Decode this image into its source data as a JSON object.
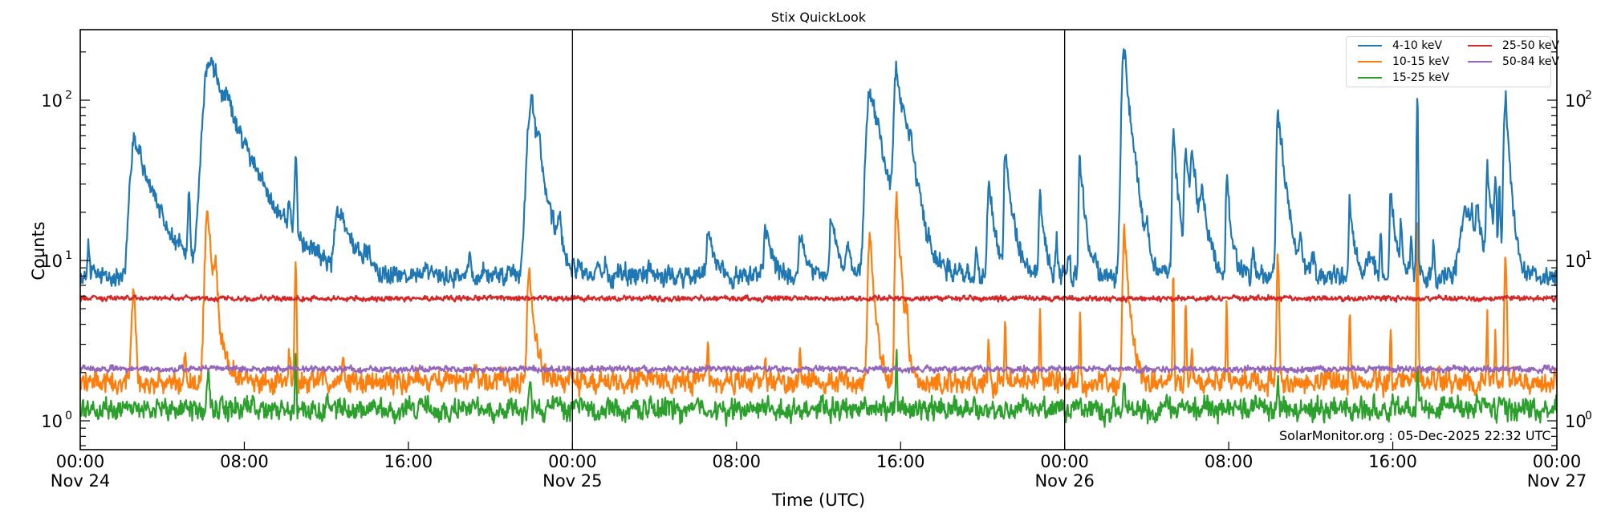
{
  "figure": {
    "title": "Stix QuickLook",
    "ylabel": "Counts",
    "xlabel": "Time (UTC)",
    "credit": "SolarMonitor.org : 05-Dec-2025 22:32 UTC"
  },
  "legend": {
    "items": [
      {
        "label": "4-10 keV",
        "color": "#1f77b4"
      },
      {
        "label": "10-15 keV",
        "color": "#ff7f0e"
      },
      {
        "label": "15-25 keV",
        "color": "#2ca02c"
      },
      {
        "label": "25-50 keV",
        "color": "#d62728"
      },
      {
        "label": "50-84 keV",
        "color": "#9467bd"
      }
    ]
  },
  "x_ticks": [
    {
      "hour": 0,
      "time": "00:00",
      "date": "Nov 24"
    },
    {
      "hour": 8,
      "time": "08:00",
      "date": ""
    },
    {
      "hour": 16,
      "time": "16:00",
      "date": ""
    },
    {
      "hour": 24,
      "time": "00:00",
      "date": "Nov 25"
    },
    {
      "hour": 32,
      "time": "08:00",
      "date": ""
    },
    {
      "hour": 40,
      "time": "16:00",
      "date": ""
    },
    {
      "hour": 48,
      "time": "00:00",
      "date": "Nov 26"
    },
    {
      "hour": 56,
      "time": "08:00",
      "date": ""
    },
    {
      "hour": 64,
      "time": "16:00",
      "date": ""
    },
    {
      "hour": 72,
      "time": "00:00",
      "date": "Nov 27"
    }
  ],
  "y_ticks": [
    {
      "value": 1,
      "label_base": "10",
      "label_exp": "0"
    },
    {
      "value": 10,
      "label_base": "10",
      "label_exp": "1"
    },
    {
      "value": 100,
      "label_base": "10",
      "label_exp": "2"
    }
  ],
  "chart_data": {
    "type": "line",
    "title": "Stix QuickLook",
    "xlabel": "Time (UTC)",
    "ylabel": "Counts",
    "yscale": "log",
    "xlim_hours": [
      0,
      72
    ],
    "x_start": "2025-11-24 00:00 UTC",
    "ylim": [
      0.66,
      275
    ],
    "grid": false,
    "legend_position": "upper right",
    "day_separators_hours": [
      24,
      48
    ],
    "series": [
      {
        "name": "4-10 keV",
        "color": "#1f77b4",
        "baseline": 8.0,
        "noise": 0.045,
        "peaks": [
          {
            "t": 0.4,
            "v": 13,
            "w": 0.05
          },
          {
            "t": 2.65,
            "v": 57,
            "w": 0.18,
            "decay": 0.9
          },
          {
            "t": 5.3,
            "v": 24,
            "w": 0.05
          },
          {
            "t": 6.3,
            "v": 174,
            "w": 0.25,
            "decay": 1.3
          },
          {
            "t": 7.2,
            "v": 25,
            "w": 0.1
          },
          {
            "t": 10.2,
            "v": 15,
            "w": 0.06
          },
          {
            "t": 10.5,
            "v": 41,
            "w": 0.05
          },
          {
            "t": 12.5,
            "v": 16,
            "w": 0.1
          },
          {
            "t": 12.8,
            "v": 19,
            "w": 0.15,
            "decay": 0.5
          },
          {
            "t": 14.0,
            "v": 10.5,
            "w": 0.15
          },
          {
            "t": 19.0,
            "v": 10.5,
            "w": 0.08
          },
          {
            "t": 22.0,
            "v": 90,
            "w": 0.18,
            "decay": 0.5
          },
          {
            "t": 22.4,
            "v": 20,
            "w": 0.08
          },
          {
            "t": 23.4,
            "v": 15,
            "w": 0.06
          },
          {
            "t": 25.6,
            "v": 9.5,
            "w": 0.06
          },
          {
            "t": 27.8,
            "v": 9.5,
            "w": 0.08
          },
          {
            "t": 30.6,
            "v": 14.6,
            "w": 0.06,
            "decay": 0.3
          },
          {
            "t": 33.4,
            "v": 16.6,
            "w": 0.05,
            "decay": 0.3
          },
          {
            "t": 35.1,
            "v": 15,
            "w": 0.05,
            "decay": 0.3
          },
          {
            "t": 36.6,
            "v": 18,
            "w": 0.05,
            "decay": 0.3
          },
          {
            "t": 37.5,
            "v": 11,
            "w": 0.1
          },
          {
            "t": 38.5,
            "v": 110,
            "w": 0.15,
            "decay": 0.6
          },
          {
            "t": 38.9,
            "v": 22,
            "w": 0.12
          },
          {
            "t": 39.8,
            "v": 145,
            "w": 0.1,
            "decay": 0.4
          },
          {
            "t": 40.2,
            "v": 26,
            "w": 0.1,
            "decay": 0.3
          },
          {
            "t": 40.5,
            "v": 26,
            "w": 0.1,
            "decay": 0.4
          },
          {
            "t": 43.7,
            "v": 11,
            "w": 0.06
          },
          {
            "t": 44.3,
            "v": 28,
            "w": 0.06,
            "decay": 0.3
          },
          {
            "t": 45.1,
            "v": 47,
            "w": 0.05,
            "decay": 0.3
          },
          {
            "t": 46.8,
            "v": 25,
            "w": 0.05,
            "decay": 0.2
          },
          {
            "t": 47.6,
            "v": 13,
            "w": 0.05
          },
          {
            "t": 48.2,
            "v": 11,
            "w": 0.05
          },
          {
            "t": 48.75,
            "v": 46,
            "w": 0.05,
            "decay": 0.2
          },
          {
            "t": 49.5,
            "v": 10.5,
            "w": 0.05
          },
          {
            "t": 50.9,
            "v": 209,
            "w": 0.1,
            "decay": 0.3
          },
          {
            "t": 52.0,
            "v": 12,
            "w": 0.08
          },
          {
            "t": 53.3,
            "v": 62,
            "w": 0.05,
            "decay": 0.2
          },
          {
            "t": 53.9,
            "v": 44,
            "w": 0.06,
            "decay": 0.3
          },
          {
            "t": 54.2,
            "v": 36,
            "w": 0.06,
            "decay": 0.3
          },
          {
            "t": 54.7,
            "v": 20,
            "w": 0.08,
            "decay": 0.3
          },
          {
            "t": 55.9,
            "v": 31,
            "w": 0.04,
            "decay": 0.2
          },
          {
            "t": 57.2,
            "v": 11,
            "w": 0.06
          },
          {
            "t": 58.4,
            "v": 91,
            "w": 0.06,
            "decay": 0.3
          },
          {
            "t": 59.5,
            "v": 11.5,
            "w": 0.06
          },
          {
            "t": 60.1,
            "v": 11,
            "w": 0.06
          },
          {
            "t": 61.9,
            "v": 23,
            "w": 0.04,
            "decay": 0.2
          },
          {
            "t": 62.9,
            "v": 10.5,
            "w": 0.15
          },
          {
            "t": 63.4,
            "v": 16,
            "w": 0.04
          },
          {
            "t": 63.9,
            "v": 28,
            "w": 0.04,
            "decay": 0.2
          },
          {
            "t": 64.4,
            "v": 15,
            "w": 0.04
          },
          {
            "t": 64.9,
            "v": 14,
            "w": 0.04
          },
          {
            "t": 65.2,
            "v": 115,
            "w": 0.03
          },
          {
            "t": 66.0,
            "v": 13,
            "w": 0.04
          },
          {
            "t": 67.5,
            "v": 20,
            "w": 0.18,
            "decay": 0.5
          },
          {
            "t": 67.8,
            "v": 14,
            "w": 0.1
          },
          {
            "t": 68.1,
            "v": 21,
            "w": 0.05,
            "decay": 0.2
          },
          {
            "t": 68.6,
            "v": 37,
            "w": 0.04,
            "decay": 0.2
          },
          {
            "t": 69.0,
            "v": 28,
            "w": 0.05
          },
          {
            "t": 69.2,
            "v": 28,
            "w": 0.04
          },
          {
            "t": 69.5,
            "v": 98,
            "w": 0.08,
            "decay": 0.2
          }
        ]
      },
      {
        "name": "10-15 keV",
        "color": "#ff7f0e",
        "baseline": 1.75,
        "noise": 0.05,
        "peaks": [
          {
            "t": 2.6,
            "v": 6.3,
            "w": 0.08
          },
          {
            "t": 5.1,
            "v": 2.8,
            "w": 0.04
          },
          {
            "t": 6.2,
            "v": 19,
            "w": 0.1,
            "decay": 0.3
          },
          {
            "t": 6.6,
            "v": 5,
            "w": 0.08
          },
          {
            "t": 10.2,
            "v": 2.6,
            "w": 0.04
          },
          {
            "t": 10.5,
            "v": 9.5,
            "w": 0.04
          },
          {
            "t": 12.8,
            "v": 2.6,
            "w": 0.05
          },
          {
            "t": 21.9,
            "v": 9.5,
            "w": 0.08,
            "decay": 0.2
          },
          {
            "t": 30.6,
            "v": 2.7,
            "w": 0.04
          },
          {
            "t": 33.4,
            "v": 2.7,
            "w": 0.04
          },
          {
            "t": 35.1,
            "v": 2.6,
            "w": 0.04
          },
          {
            "t": 38.5,
            "v": 14,
            "w": 0.08,
            "decay": 0.2
          },
          {
            "t": 39.8,
            "v": 23,
            "w": 0.06,
            "decay": 0.2
          },
          {
            "t": 40.3,
            "v": 3.1,
            "w": 0.05
          },
          {
            "t": 44.3,
            "v": 2.9,
            "w": 0.04
          },
          {
            "t": 45.1,
            "v": 4.7,
            "w": 0.03
          },
          {
            "t": 46.8,
            "v": 5.1,
            "w": 0.03
          },
          {
            "t": 48.75,
            "v": 4.8,
            "w": 0.03
          },
          {
            "t": 50.9,
            "v": 15,
            "w": 0.06,
            "decay": 0.2
          },
          {
            "t": 53.3,
            "v": 8,
            "w": 0.03
          },
          {
            "t": 53.9,
            "v": 5.2,
            "w": 0.03
          },
          {
            "t": 54.2,
            "v": 3.3,
            "w": 0.03
          },
          {
            "t": 55.9,
            "v": 5.2,
            "w": 0.03
          },
          {
            "t": 58.4,
            "v": 10,
            "w": 0.05
          },
          {
            "t": 61.9,
            "v": 4.7,
            "w": 0.03
          },
          {
            "t": 63.9,
            "v": 4.1,
            "w": 0.03
          },
          {
            "t": 65.2,
            "v": 19,
            "w": 0.03
          },
          {
            "t": 68.6,
            "v": 4.5,
            "w": 0.03
          },
          {
            "t": 69.0,
            "v": 3.5,
            "w": 0.03
          },
          {
            "t": 69.5,
            "v": 9.8,
            "w": 0.05
          }
        ]
      },
      {
        "name": "15-25 keV",
        "color": "#2ca02c",
        "baseline": 1.18,
        "noise": 0.05,
        "peaks": [
          {
            "t": 6.25,
            "v": 2.0,
            "w": 0.06
          },
          {
            "t": 10.5,
            "v": 2.9,
            "w": 0.03
          },
          {
            "t": 21.95,
            "v": 1.7,
            "w": 0.05
          },
          {
            "t": 39.8,
            "v": 2.9,
            "w": 0.03
          },
          {
            "t": 50.9,
            "v": 1.8,
            "w": 0.04
          },
          {
            "t": 58.4,
            "v": 1.7,
            "w": 0.03
          },
          {
            "t": 65.2,
            "v": 2.0,
            "w": 0.03
          }
        ]
      },
      {
        "name": "25-50 keV",
        "color": "#d62728",
        "baseline": 5.8,
        "noise": 0.012,
        "peaks": []
      },
      {
        "name": "50-84 keV",
        "color": "#9467bd",
        "baseline": 2.1,
        "noise": 0.014,
        "peaks": []
      }
    ]
  }
}
